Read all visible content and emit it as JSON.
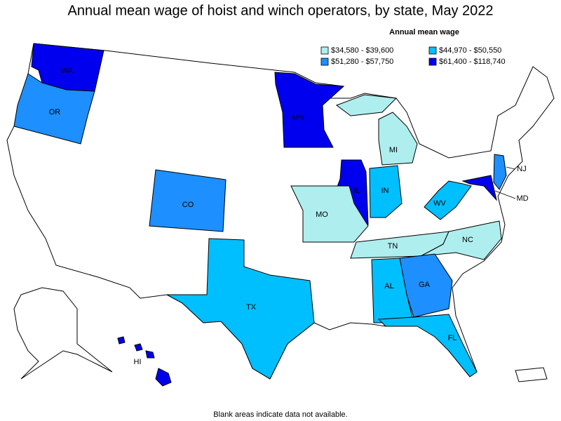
{
  "title": "Annual mean wage of hoist and winch operators, by state, May 2022",
  "legend": {
    "title": "Annual mean wage",
    "items": [
      {
        "label": "$34,580 - $39,600",
        "color": "#aeeeee"
      },
      {
        "label": "$44,970 - $50,550",
        "color": "#00bfff"
      },
      {
        "label": "$51,280 - $57,750",
        "color": "#1e8fff"
      },
      {
        "label": "$61,400 - $118,740",
        "color": "#0000ee"
      }
    ]
  },
  "states": [
    {
      "label": "WA",
      "color": "#0000ee"
    },
    {
      "label": "OR",
      "color": "#1e8fff"
    },
    {
      "label": "CO",
      "color": "#1e8fff"
    },
    {
      "label": "MN",
      "color": "#0000ee"
    },
    {
      "label": "IL",
      "color": "#0000ee"
    },
    {
      "label": "IN",
      "color": "#00bfff"
    },
    {
      "label": "MI",
      "color": "#aeeeee"
    },
    {
      "label": "MO",
      "color": "#aeeeee"
    },
    {
      "label": "TN",
      "color": "#aeeeee"
    },
    {
      "label": "NC",
      "color": "#aeeeee"
    },
    {
      "label": "WV",
      "color": "#00bfff"
    },
    {
      "label": "NJ",
      "color": "#1e8fff"
    },
    {
      "label": "MD",
      "color": "#0000ee"
    },
    {
      "label": "GA",
      "color": "#1e8fff"
    },
    {
      "label": "AL",
      "color": "#00bfff"
    },
    {
      "label": "FL",
      "color": "#00bfff"
    },
    {
      "label": "TX",
      "color": "#00bfff"
    },
    {
      "label": "HI",
      "color": "#0000ee"
    }
  ],
  "note": "Blank areas indicate data not available."
}
